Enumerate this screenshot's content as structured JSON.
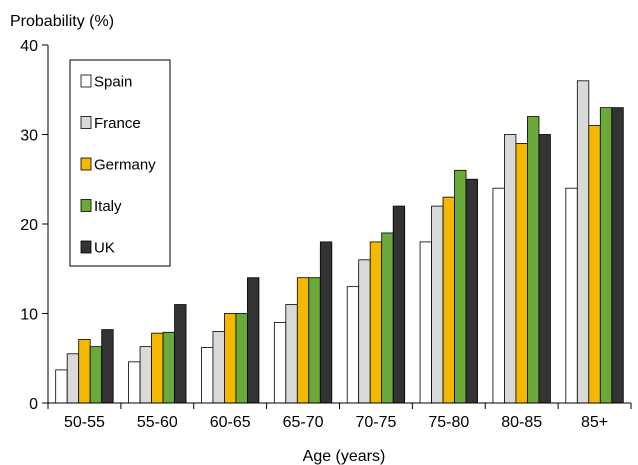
{
  "chart_data": {
    "type": "bar",
    "ylabel": "Probability (%)",
    "xlabel": "Age (years)",
    "ylim": [
      0,
      40
    ],
    "yticks": [
      0,
      10,
      20,
      30,
      40
    ],
    "grid": false,
    "legend_position": "top-left",
    "categories": [
      "50-55",
      "55-60",
      "60-65",
      "65-70",
      "70-75",
      "75-80",
      "80-85",
      "85+"
    ],
    "series": [
      {
        "name": "Spain",
        "color": "#ffffff",
        "values": [
          3.7,
          4.6,
          6.2,
          9,
          13,
          18,
          24,
          24
        ]
      },
      {
        "name": "France",
        "color": "#d9d9d9",
        "values": [
          5.5,
          6.3,
          8,
          11,
          16,
          22,
          30,
          36
        ]
      },
      {
        "name": "Germany",
        "color": "#f5b800",
        "values": [
          7.1,
          7.8,
          10,
          14,
          18,
          23,
          29,
          31
        ]
      },
      {
        "name": "Italy",
        "color": "#6aaa3a",
        "values": [
          6.3,
          7.9,
          10,
          14,
          19,
          26,
          32,
          33
        ]
      },
      {
        "name": "UK",
        "color": "#333333",
        "values": [
          8.2,
          11,
          14,
          18,
          22,
          25,
          30,
          33
        ]
      }
    ]
  }
}
